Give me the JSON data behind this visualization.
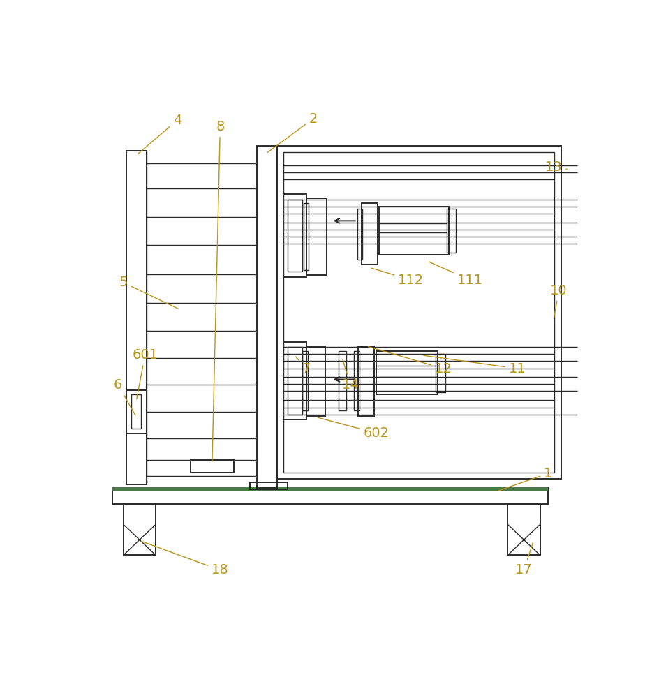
{
  "bg_color": "#ffffff",
  "line_color": "#2a2a2a",
  "label_color": "#b8941a",
  "lw": 1.4,
  "lw_thin": 1.0,
  "fig_width": 9.34,
  "fig_height": 10.0
}
